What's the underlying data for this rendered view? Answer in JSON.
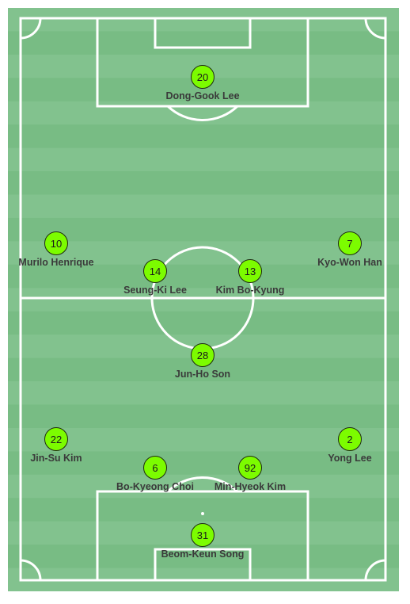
{
  "pitch": {
    "stripe_colors": [
      "#82c28e",
      "#78bc84"
    ],
    "line_color": "#ffffff",
    "badge_color": "#7cfc00"
  },
  "players": [
    {
      "number": "20",
      "name": "Dong-Gook Lee"
    },
    {
      "number": "10",
      "name": "Murilo Henrique"
    },
    {
      "number": "7",
      "name": "Kyo-Won Han"
    },
    {
      "number": "14",
      "name": "Seung-Ki Lee"
    },
    {
      "number": "13",
      "name": "Kim Bo-Kyung"
    },
    {
      "number": "28",
      "name": "Jun-Ho Son"
    },
    {
      "number": "22",
      "name": "Jin-Su Kim"
    },
    {
      "number": "2",
      "name": "Yong Lee"
    },
    {
      "number": "6",
      "name": "Bo-Kyeong Choi"
    },
    {
      "number": "92",
      "name": "Min-Hyeok Kim"
    },
    {
      "number": "31",
      "name": "Beom-Keun Song"
    }
  ]
}
